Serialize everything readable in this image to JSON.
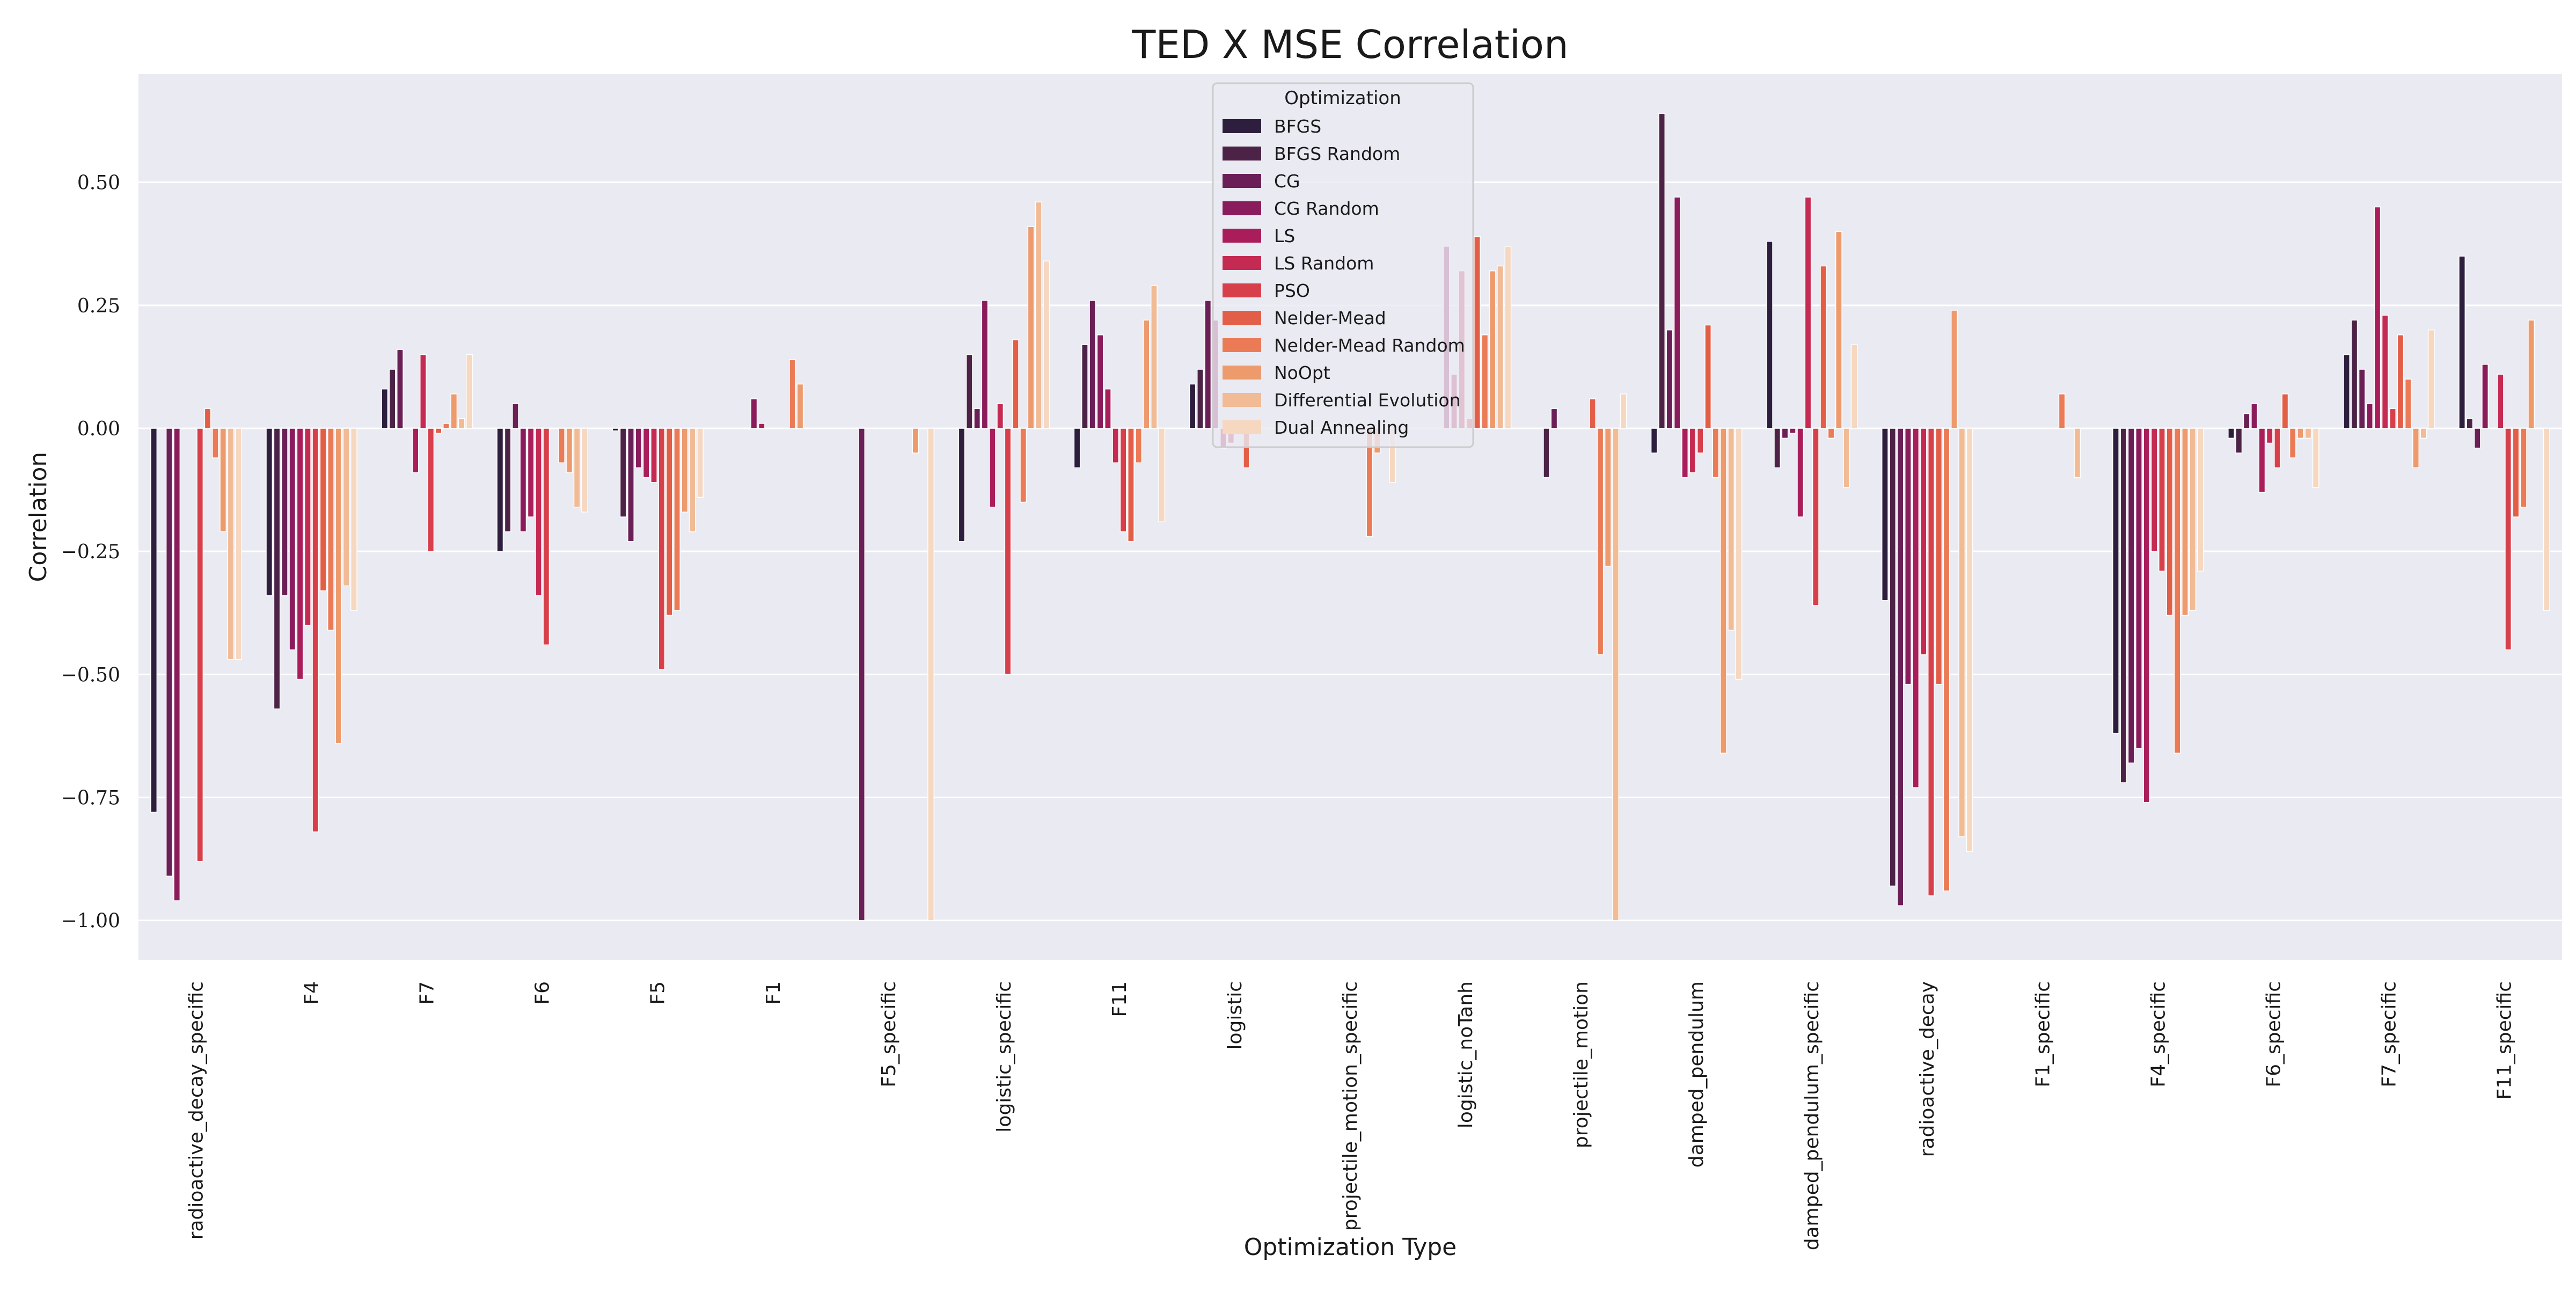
{
  "chart_data": {
    "type": "bar",
    "title": "TED X MSE Correlation",
    "xlabel": "Optimization Type",
    "ylabel": "Correlation",
    "ylim": [
      -1.08,
      0.72
    ],
    "yticks": [
      0.5,
      0.25,
      0.0,
      -0.25,
      -0.5,
      -0.75,
      -1.0
    ],
    "ytick_labels": [
      "0.50",
      "0.25",
      "0.00",
      "−0.25",
      "−0.50",
      "−0.75",
      "−1.00"
    ],
    "grid": true,
    "legend": {
      "title": "Optimization",
      "placement": "top-center"
    },
    "categories": [
      "radioactive_decay_specific",
      "F4",
      "F7",
      "F6",
      "F5",
      "F1",
      "F5_specific",
      "logistic_specific",
      "F11",
      "logistic",
      "projectile_motion_specific",
      "logistic_noTanh",
      "projectile_motion",
      "damped_pendulum",
      "damped_pendulum_specific",
      "radioactive_decay",
      "F1_specific",
      "F4_specific",
      "F6_specific",
      "F7_specific",
      "F11_specific"
    ],
    "series": [
      {
        "name": "BFGS",
        "color": "#2d1e3e",
        "values": [
          -0.78,
          -0.34,
          0.08,
          -0.25,
          -0.005,
          0,
          0,
          -0.23,
          -0.08,
          0.09,
          0,
          0,
          0,
          -0.05,
          0.38,
          -0.35,
          0,
          -0.62,
          -0.02,
          0.15,
          0.35
        ]
      },
      {
        "name": "BFGS Random",
        "color": "#4c2346",
        "values": [
          0,
          -0.57,
          0.12,
          -0.21,
          -0.18,
          0,
          0,
          0.15,
          0.17,
          0.12,
          0,
          0,
          -0.1,
          0.64,
          -0.08,
          -0.93,
          0,
          -0.72,
          -0.05,
          0.22,
          0.02
        ]
      },
      {
        "name": "CG",
        "color": "#6a1f56",
        "values": [
          -0.91,
          -0.34,
          0.16,
          0.05,
          -0.23,
          0,
          -1.0,
          0.04,
          0.26,
          0.26,
          0,
          0,
          0.04,
          0.2,
          -0.02,
          -0.97,
          0,
          -0.68,
          0.03,
          0.12,
          -0.04
        ]
      },
      {
        "name": "CG Random",
        "color": "#8a1c5c",
        "values": [
          -0.96,
          -0.45,
          0,
          -0.21,
          -0.08,
          0.06,
          0,
          0.26,
          0.19,
          0.22,
          0,
          0.37,
          0,
          0.47,
          -0.01,
          -0.52,
          0,
          -0.65,
          0.05,
          0.05,
          0.13
        ]
      },
      {
        "name": "LS",
        "color": "#a81d5a",
        "values": [
          0,
          -0.51,
          -0.09,
          -0.18,
          -0.1,
          0.01,
          0,
          -0.16,
          0.08,
          -0.04,
          0,
          0.11,
          0,
          -0.1,
          -0.18,
          -0.73,
          0,
          -0.76,
          -0.13,
          0.45,
          0
        ]
      },
      {
        "name": "LS Random",
        "color": "#c42a52",
        "values": [
          0,
          -0.4,
          0.15,
          -0.34,
          -0.11,
          0,
          0,
          0.05,
          -0.07,
          -0.03,
          0,
          0.32,
          0,
          -0.09,
          0.47,
          -0.46,
          0,
          -0.25,
          -0.03,
          0.23,
          0.11
        ]
      },
      {
        "name": "PSO",
        "color": "#d7404b",
        "values": [
          -0.88,
          -0.82,
          -0.25,
          -0.44,
          -0.49,
          0,
          0,
          -0.5,
          -0.21,
          0,
          0,
          0.02,
          0,
          -0.05,
          -0.36,
          -0.95,
          0,
          -0.29,
          -0.08,
          0.04,
          -0.45
        ]
      },
      {
        "name": "Nelder-Mead",
        "color": "#e35e47",
        "values": [
          0.04,
          -0.33,
          -0.01,
          0,
          -0.38,
          0,
          0,
          0.18,
          -0.23,
          -0.08,
          0,
          0.39,
          0.06,
          0.21,
          0.33,
          -0.52,
          0,
          -0.38,
          0.07,
          0.19,
          -0.18
        ]
      },
      {
        "name": "Nelder-Mead Random",
        "color": "#ea7b56",
        "values": [
          -0.06,
          -0.41,
          0.01,
          -0.07,
          -0.37,
          0.14,
          0,
          -0.15,
          -0.07,
          0,
          -0.22,
          0.19,
          -0.46,
          -0.1,
          -0.02,
          -0.94,
          0.07,
          -0.66,
          -0.06,
          0.1,
          -0.16
        ]
      },
      {
        "name": "NoOpt",
        "color": "#ed9a6d",
        "values": [
          -0.21,
          -0.64,
          0.07,
          -0.09,
          -0.17,
          0.09,
          -0.05,
          0.41,
          0.22,
          0,
          -0.05,
          0.32,
          -0.28,
          -0.66,
          0.4,
          0.24,
          0,
          -0.38,
          -0.02,
          -0.08,
          0.22
        ]
      },
      {
        "name": "Differential Evolution",
        "color": "#f1bb95",
        "values": [
          -0.47,
          -0.32,
          0.02,
          -0.16,
          -0.21,
          0,
          0,
          0.46,
          0.29,
          0,
          0,
          0.33,
          -1.0,
          -0.41,
          -0.12,
          -0.83,
          -0.1,
          -0.37,
          -0.02,
          -0.02,
          0
        ]
      },
      {
        "name": "Dual Annealing",
        "color": "#f6d7bf",
        "values": [
          -0.47,
          -0.37,
          0.15,
          -0.17,
          -0.14,
          0,
          -1.0,
          0.34,
          -0.19,
          0,
          -0.11,
          0.37,
          0.07,
          -0.51,
          0.17,
          -0.86,
          0,
          -0.29,
          -0.12,
          0.2,
          -0.37
        ]
      }
    ]
  }
}
